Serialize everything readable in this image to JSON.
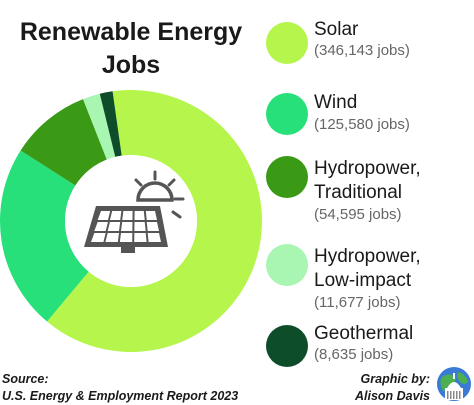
{
  "title_lines": [
    "Renewable Energy",
    "Jobs"
  ],
  "source": {
    "label": "Source:",
    "text": "U.S. Energy & Employment Report 2023"
  },
  "credit": {
    "label": "Graphic by:",
    "name": "Alison Davis"
  },
  "legend": [
    {
      "name_lines": [
        "Solar"
      ],
      "value_text": "(346,143 jobs)",
      "color": "#b5f54c"
    },
    {
      "name_lines": [
        "Wind"
      ],
      "value_text": "(125,580 jobs)",
      "color": "#27e07a"
    },
    {
      "name_lines": [
        "Hydropower,",
        "Traditional"
      ],
      "value_text": "(54,595 jobs)",
      "color": "#3a9a16"
    },
    {
      "name_lines": [
        "Hydropower,",
        "Low-impact"
      ],
      "value_text": "(11,677 jobs)",
      "color": "#a9f5b2"
    },
    {
      "name_lines": [
        "Geothermal"
      ],
      "value_text": "(8,635 jobs)",
      "color": "#0d4d2a"
    }
  ],
  "chart_data": {
    "type": "pie",
    "title": "Renewable Energy Jobs",
    "categories": [
      "Solar",
      "Wind",
      "Hydropower, Traditional",
      "Hydropower, Low-impact",
      "Geothermal"
    ],
    "values": [
      346143,
      125580,
      54595,
      11677,
      8635
    ],
    "colors": [
      "#b5f54c",
      "#27e07a",
      "#3a9a16",
      "#a9f5b2",
      "#0d4d2a"
    ],
    "donut": true,
    "center_icon": "solar-panel-sun-icon",
    "legend_position": "right"
  }
}
